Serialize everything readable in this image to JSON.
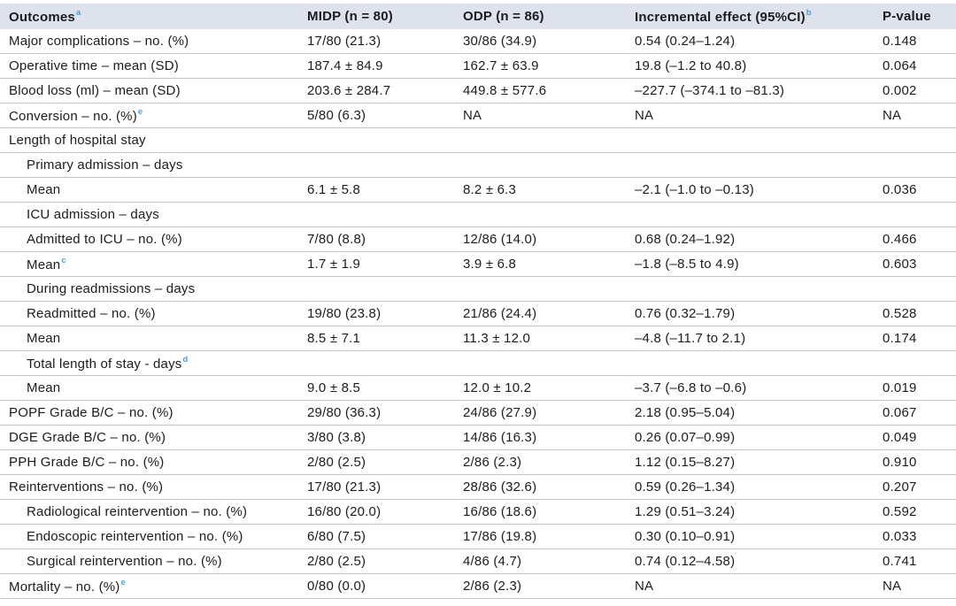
{
  "colors": {
    "header_bg": "#dee2ed",
    "line": "#c3c6ca",
    "text": "#1c1c1e",
    "footnote_blue": "#4aa0d5"
  },
  "table": {
    "header": {
      "outcomes": "Outcomes",
      "outcomes_sup": "a",
      "midp": "MIDP (n = 80)",
      "odp": "ODP (n = 86)",
      "incremental": "Incremental effect (95%CI)",
      "incremental_sup": "b",
      "pvalue": "P-value"
    },
    "rows": [
      {
        "label": "Major complications – no. (%)",
        "sup": "",
        "indent": 0,
        "midp": "17/80 (21.3)",
        "odp": "30/86 (34.9)",
        "effect": "0.54 (0.24–1.24)",
        "p": "0.148"
      },
      {
        "label": "Operative time – mean (SD)",
        "sup": "",
        "indent": 0,
        "midp": "187.4 ± 84.9",
        "odp": "162.7 ± 63.9",
        "effect": "19.8 (–1.2 to 40.8)",
        "p": "0.064"
      },
      {
        "label": "Blood loss (ml) – mean (SD)",
        "sup": "",
        "indent": 0,
        "midp": "203.6 ± 284.7",
        "odp": "449.8 ± 577.6",
        "effect": "–227.7 (–374.1 to –81.3)",
        "p": "0.002"
      },
      {
        "label": "Conversion – no. (%)",
        "sup": "e",
        "indent": 0,
        "midp": "5/80 (6.3)",
        "odp": "NA",
        "effect": "NA",
        "p": "NA"
      },
      {
        "label": "Length of hospital stay",
        "sup": "",
        "indent": 0,
        "midp": "",
        "odp": "",
        "effect": "",
        "p": ""
      },
      {
        "label": "Primary admission – days",
        "sup": "",
        "indent": 1,
        "midp": "",
        "odp": "",
        "effect": "",
        "p": ""
      },
      {
        "label": "Mean",
        "sup": "",
        "indent": 1,
        "midp": "6.1 ± 5.8",
        "odp": "8.2 ± 6.3",
        "effect": "–2.1 (–1.0 to –0.13)",
        "p": "0.036"
      },
      {
        "label": "ICU admission – days",
        "sup": "",
        "indent": 1,
        "midp": "",
        "odp": "",
        "effect": "",
        "p": ""
      },
      {
        "label": "Admitted to ICU – no. (%)",
        "sup": "",
        "indent": 1,
        "midp": "7/80 (8.8)",
        "odp": "12/86 (14.0)",
        "effect": "0.68 (0.24–1.92)",
        "p": "0.466"
      },
      {
        "label": "Mean",
        "sup": "c",
        "indent": 1,
        "midp": "1.7 ± 1.9",
        "odp": "3.9 ± 6.8",
        "effect": "–1.8 (–8.5 to 4.9)",
        "p": "0.603"
      },
      {
        "label": "During readmissions – days",
        "sup": "",
        "indent": 1,
        "midp": "",
        "odp": "",
        "effect": "",
        "p": ""
      },
      {
        "label": "Readmitted – no. (%)",
        "sup": "",
        "indent": 1,
        "midp": "19/80 (23.8)",
        "odp": "21/86 (24.4)",
        "effect": "0.76 (0.32–1.79)",
        "p": "0.528"
      },
      {
        "label": "Mean",
        "sup": "",
        "indent": 1,
        "midp": "8.5 ± 7.1",
        "odp": "11.3 ± 12.0",
        "effect": "–4.8 (–11.7 to 2.1)",
        "p": "0.174"
      },
      {
        "label": "Total length of stay - days",
        "sup": "d",
        "indent": 1,
        "midp": "",
        "odp": "",
        "effect": "",
        "p": ""
      },
      {
        "label": "Mean",
        "sup": "",
        "indent": 1,
        "midp": "9.0 ± 8.5",
        "odp": "12.0 ± 10.2",
        "effect": "–3.7 (–6.8 to –0.6)",
        "p": "0.019"
      },
      {
        "label": "POPF Grade B/C – no. (%)",
        "sup": "",
        "indent": 0,
        "midp": "29/80 (36.3)",
        "odp": "24/86 (27.9)",
        "effect": "2.18 (0.95–5.04)",
        "p": "0.067"
      },
      {
        "label": "DGE Grade B/C – no. (%)",
        "sup": "",
        "indent": 0,
        "midp": "3/80 (3.8)",
        "odp": "14/86 (16.3)",
        "effect": "0.26 (0.07–0.99)",
        "p": "0.049"
      },
      {
        "label": "PPH Grade B/C – no. (%)",
        "sup": "",
        "indent": 0,
        "midp": "2/80 (2.5)",
        "odp": "2/86 (2.3)",
        "effect": "1.12 (0.15–8.27)",
        "p": "0.910"
      },
      {
        "label": "Reinterventions – no. (%)",
        "sup": "",
        "indent": 0,
        "midp": "17/80 (21.3)",
        "odp": "28/86 (32.6)",
        "effect": "0.59 (0.26–1.34)",
        "p": "0.207"
      },
      {
        "label": "Radiological reintervention – no. (%)",
        "sup": "",
        "indent": 1,
        "midp": "16/80 (20.0)",
        "odp": "16/86 (18.6)",
        "effect": "1.29 (0.51–3.24)",
        "p": "0.592"
      },
      {
        "label": "Endoscopic reintervention – no. (%)",
        "sup": "",
        "indent": 1,
        "midp": "6/80 (7.5)",
        "odp": "17/86 (19.8)",
        "effect": "0.30 (0.10–0.91)",
        "p": "0.033"
      },
      {
        "label": "Surgical reintervention – no. (%)",
        "sup": "",
        "indent": 1,
        "midp": "2/80 (2.5)",
        "odp": "4/86 (4.7)",
        "effect": "0.74 (0.12–4.58)",
        "p": "0.741"
      },
      {
        "label": "Mortality – no. (%)",
        "sup": "e",
        "indent": 0,
        "midp": "0/80 (0.0)",
        "odp": "2/86 (2.3)",
        "effect": "NA",
        "p": "NA"
      }
    ]
  }
}
